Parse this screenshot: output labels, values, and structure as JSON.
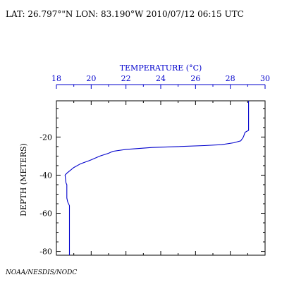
{
  "header": {
    "text": "LAT: 26.797°\"N LON: 83.190°W 2010/07/12 06:15 UTC"
  },
  "footer": {
    "credit": "NOAA/NESDIS/NODC"
  },
  "chart_data": {
    "type": "line",
    "title": "",
    "xlabel": "TEMPERATURE (°C)",
    "ylabel": "DEPTH (METERS)",
    "xlim": [
      18,
      30
    ],
    "ylim": [
      -82,
      -1
    ],
    "x_ticks": [
      18,
      20,
      22,
      24,
      26,
      28,
      30
    ],
    "x_tick_labels": [
      "18",
      "20",
      "22",
      "24",
      "26",
      "28",
      "30"
    ],
    "y_ticks": [
      -20,
      -40,
      -60,
      -80
    ],
    "y_tick_labels": [
      "-20",
      "-40",
      "-60",
      "-80"
    ],
    "x_axis_position": "top",
    "grid": false,
    "legend": "none",
    "colors": {
      "profile_line": "#0000cc",
      "x_axis": "#0000cc",
      "frame": "#000000",
      "header_text": "#000000"
    },
    "series": [
      {
        "x": [
          29.05,
          29.05,
          28.85,
          28.75,
          28.6,
          28.2,
          27.5,
          26.5,
          25.0,
          23.5,
          22.0,
          21.25,
          21.0,
          20.5,
          20.0,
          19.4,
          19.0,
          18.6,
          18.5,
          18.55,
          18.6,
          18.6,
          18.65,
          18.75,
          18.75,
          18.75
        ],
        "y": [
          -1,
          -16.5,
          -17.5,
          -20.0,
          -22.0,
          -23.0,
          -24.0,
          -24.5,
          -25.0,
          -25.5,
          -26.5,
          -27.5,
          -28.5,
          -30.0,
          -32.0,
          -34.0,
          -36.0,
          -39.0,
          -40.0,
          -44.0,
          -45.0,
          -52.0,
          -54.0,
          -56.0,
          -62.0,
          -82.0
        ]
      }
    ]
  }
}
